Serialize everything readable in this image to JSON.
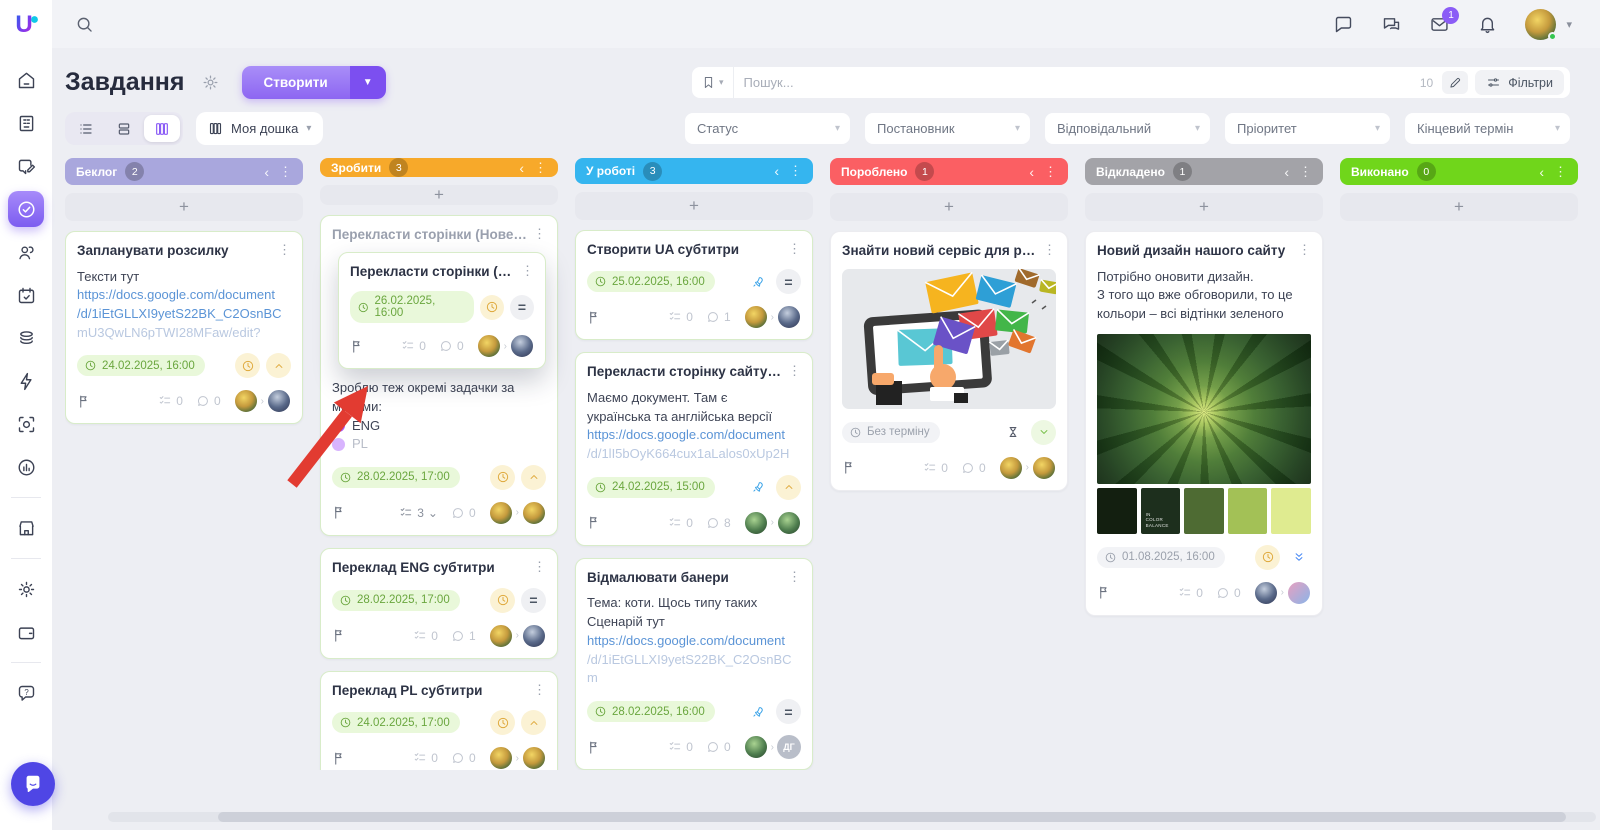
{
  "brand": {
    "logo_letter": "U"
  },
  "topbar": {
    "icons": [
      "search-icon",
      "chat-icon",
      "chats-duo-icon",
      "mail-icon",
      "bell-icon",
      "avatar",
      "chevron-down-icon"
    ],
    "mail_badge": "1"
  },
  "sidebar": {
    "icons": [
      "home-icon",
      "company-icon",
      "chat-edit-icon",
      "tasks-check-icon",
      "users-icon",
      "calendar-check-icon",
      "stack-icon",
      "lightning-icon",
      "scan-face-icon",
      "analytics-icon",
      "shop-icon",
      "settings-icon",
      "wallet-icon",
      "help-icon",
      "messenger-widget-icon"
    ]
  },
  "page": {
    "title": "Завдання",
    "create_button": "Створити"
  },
  "view_switcher": {
    "board_name": "Моя дошка",
    "views": [
      "list-view-icon",
      "rows-view-icon",
      "columns-view-icon"
    ],
    "active_view": "columns"
  },
  "search": {
    "placeholder": "Пошук...",
    "count": "10",
    "filters_label": "Фільтри"
  },
  "filters": [
    {
      "label": "Статус"
    },
    {
      "label": "Постановник"
    },
    {
      "label": "Відповідальний"
    },
    {
      "label": "Пріоритет"
    },
    {
      "label": "Кінцевий термін"
    }
  ],
  "annotation": {
    "type": "red-arrow",
    "color": "#e23b31",
    "points_at": "flag-icon of dragged card"
  },
  "board": {
    "columns": [
      {
        "title": "Беклог",
        "count": "2",
        "color": "#a9a7dd",
        "cards": [
          {
            "title": "Запланувати розсилку",
            "body": [
              {
                "type": "text",
                "text": "Тексти тут"
              },
              {
                "type": "link",
                "text": "https://docs.google.com/document"
              },
              {
                "type": "link",
                "text": "/d/1iEtGLLXI9yetS22BK_C2OsnBC"
              },
              {
                "type": "link-faded",
                "text": "mU3QwLN6pTWI28MFaw/edit?"
              }
            ],
            "due": {
              "text": "24.02.2025, 16:00",
              "tone": "green"
            },
            "indicators": [
              "clock",
              "chevron-up"
            ],
            "footer": {
              "checklist": "0",
              "comments": "0",
              "avatars": [
                "p1",
                "p2"
              ]
            }
          }
        ]
      },
      {
        "title": "Зробити",
        "count": "3",
        "color": "#f7a92a",
        "cards": [
          {
            "title": "Перекласти сторінки (Нове ...",
            "ghost": true,
            "overlay": {
              "title": "Перекласти сторінки (Нове ...",
              "due": {
                "text": "26.02.2025, 16:00",
                "tone": "green"
              },
              "indicators": [
                "clock",
                "equals"
              ],
              "footer": {
                "checklist": "0",
                "comments": "0",
                "avatars": [
                  "p1",
                  "p2"
                ]
              }
            },
            "body": [
              {
                "type": "text",
                "text": "Зроблю теж окремі задачки за мовами:"
              },
              {
                "type": "bullet",
                "color": "#a855f7",
                "text": "ENG"
              },
              {
                "type": "bullet-faded",
                "color": "#d8b4fe",
                "text": "PL"
              }
            ],
            "due": {
              "text": "28.02.2025, 17:00",
              "tone": "green"
            },
            "indicators": [
              "clock",
              "chevron-up"
            ],
            "footer": {
              "checklist": "3",
              "checklist_expand": true,
              "comments": "0",
              "avatars": [
                "p1",
                "p1"
              ]
            }
          },
          {
            "title": "Переклад ENG субтитри",
            "due": {
              "text": "28.02.2025, 17:00",
              "tone": "green"
            },
            "indicators": [
              "clock",
              "equals"
            ],
            "footer": {
              "checklist": "0",
              "comments": "1",
              "avatars": [
                "p1",
                "p2"
              ]
            }
          },
          {
            "title": "Переклад PL субтитри",
            "due": {
              "text": "24.02.2025, 17:00",
              "tone": "green"
            },
            "indicators": [
              "clock",
              "chevron-up"
            ],
            "footer": {
              "checklist": "0",
              "comments": "0",
              "avatars": [
                "p1",
                "p1"
              ]
            }
          }
        ]
      },
      {
        "title": "У роботі",
        "count": "3",
        "color": "#35b5ef",
        "cards": [
          {
            "title": "Створити UA субтитри",
            "due": {
              "text": "25.02.2025, 16:00",
              "tone": "green"
            },
            "indicators": [
              "rocket",
              "equals"
            ],
            "footer": {
              "checklist": "0",
              "comments": "1",
              "avatars": [
                "p1",
                "p2"
              ]
            }
          },
          {
            "title": "Перекласти сторінку сайту ...",
            "body": [
              {
                "type": "text",
                "text": "Маємо документ. Там є"
              },
              {
                "type": "text",
                "text": "українська та англійська версії"
              },
              {
                "type": "link",
                "text": "https://docs.google.com/document"
              },
              {
                "type": "link-faded",
                "text": "/d/1lI5bOyK664cux1aLalos0xUp2H"
              }
            ],
            "due": {
              "text": "24.02.2025, 15:00",
              "tone": "green"
            },
            "indicators": [
              "rocket",
              "chevron-up"
            ],
            "footer": {
              "checklist": "0",
              "comments": "8",
              "avatars": [
                "p3",
                "p3"
              ]
            }
          },
          {
            "title": "Відмалювати банери",
            "body": [
              {
                "type": "text",
                "text": "Тема: коти. Щось типу таких"
              },
              {
                "type": "text",
                "text": "Сценарій тут"
              },
              {
                "type": "link",
                "text": "https://docs.google.com/document"
              },
              {
                "type": "link-faded",
                "text": "/d/1iEtGLLXI9yetS22BK_C2OsnBCm"
              }
            ],
            "due": {
              "text": "28.02.2025, 16:00",
              "tone": "green"
            },
            "indicators": [
              "rocket",
              "equals"
            ],
            "footer": {
              "checklist": "0",
              "comments": "0",
              "avatars": [
                "p3",
                "init:ДГ"
              ]
            }
          }
        ]
      },
      {
        "title": "Пороблено",
        "count": "1",
        "color": "#fb5f63",
        "cards": [
          {
            "title": "Знайти новий сервіс для ро...",
            "plain": true,
            "image": "envelopes",
            "due": {
              "text": "Без терміну",
              "tone": "gray"
            },
            "indicators": [
              "hourglass",
              "chevron-down"
            ],
            "footer": {
              "checklist": "0",
              "comments": "0",
              "avatars": [
                "p1",
                "p1"
              ]
            }
          }
        ]
      },
      {
        "title": "Відкладено",
        "count": "1",
        "color": "#a3a3a8",
        "cards": [
          {
            "title": "Новий дизайн нашого сайту",
            "plain": true,
            "body": [
              {
                "type": "text",
                "text": "Потрібно оновити дизайн."
              },
              {
                "type": "text",
                "text": "З того що вже обговорили, то це"
              },
              {
                "type": "text",
                "text": "кольори – всі відтінки зеленого"
              }
            ],
            "image": "succulent",
            "palette": [
              "#131f10",
              "#1d2f1d",
              "#4e6b33",
              "#a3c156",
              "#dfeb90"
            ],
            "palette_label": "In\nColor\nBalance",
            "due": {
              "text": "01.08.2025, 16:00",
              "tone": "gray"
            },
            "indicators": [
              "clock",
              "double-chevron"
            ],
            "footer": {
              "checklist": "0",
              "comments": "0",
              "avatars": [
                "p2",
                "p4"
              ]
            }
          }
        ]
      },
      {
        "title": "Виконано",
        "count": "0",
        "color": "#70d61b",
        "cards": []
      }
    ]
  }
}
